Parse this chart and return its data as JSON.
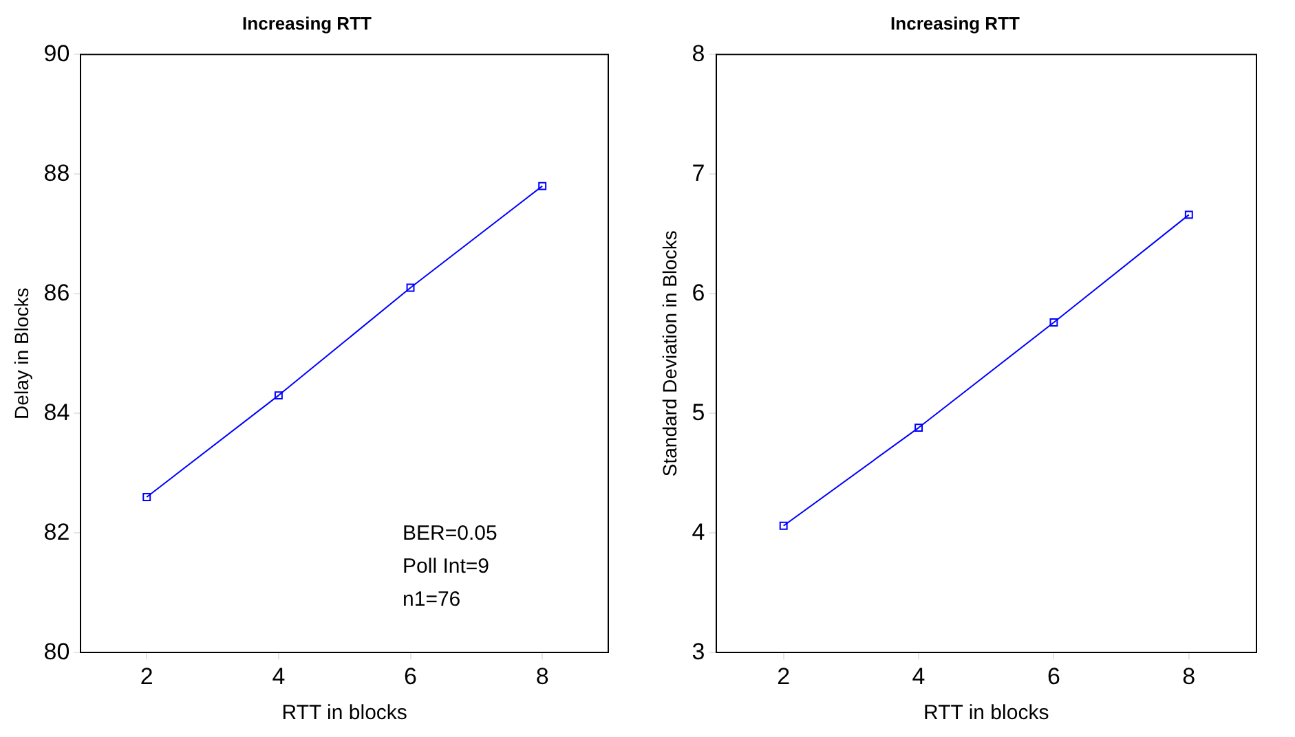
{
  "chart_data": [
    {
      "type": "line",
      "title": "Increasing RTT",
      "xlabel": "RTT in blocks",
      "ylabel": "Delay in Blocks",
      "x": [
        2,
        4,
        6,
        8
      ],
      "series": [
        {
          "color": "#0000ff",
          "values": [
            82.6,
            84.3,
            86.1,
            87.8
          ]
        }
      ],
      "xlim": [
        1,
        9
      ],
      "xticks": [
        2,
        4,
        6,
        8
      ],
      "ylim": [
        80,
        90
      ],
      "yticks": [
        80,
        82,
        84,
        86,
        88,
        90
      ],
      "marker": "square",
      "grid": false,
      "legend": false,
      "annotations": [
        "BER=0.05",
        "Poll Int=9",
        "n1=76"
      ]
    },
    {
      "type": "line",
      "title": "Increasing RTT",
      "xlabel": "RTT in blocks",
      "ylabel": "Standard Deviation in Blocks",
      "x": [
        2,
        4,
        6,
        8
      ],
      "series": [
        {
          "color": "#0000ff",
          "values": [
            4.06,
            4.88,
            5.76,
            6.66
          ]
        }
      ],
      "xlim": [
        1,
        9
      ],
      "xticks": [
        2,
        4,
        6,
        8
      ],
      "ylim": [
        3,
        8
      ],
      "yticks": [
        3,
        4,
        5,
        6,
        7,
        8
      ],
      "marker": "square",
      "grid": false,
      "legend": false
    }
  ]
}
